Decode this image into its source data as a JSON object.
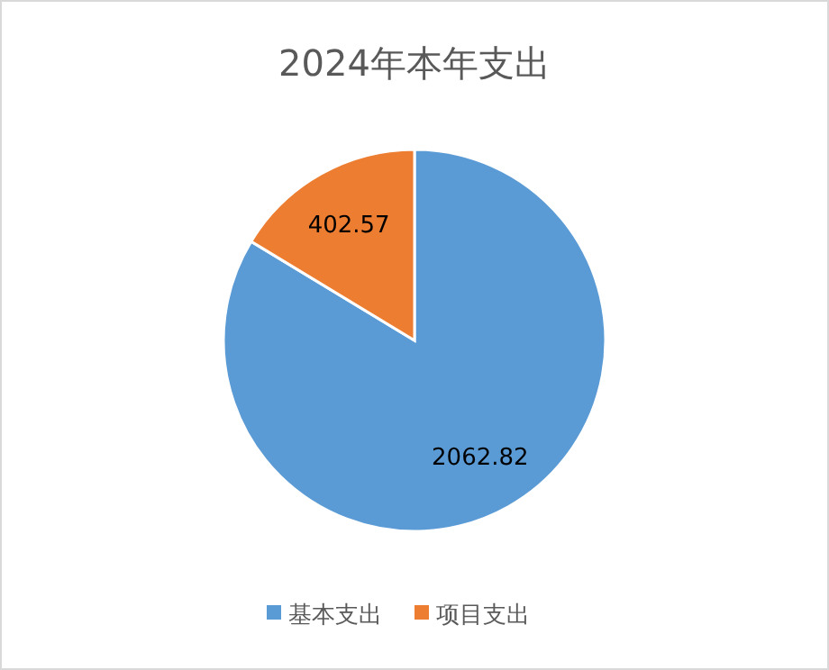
{
  "chart_data": {
    "type": "pie",
    "title": "2024年本年支出",
    "categories": [
      "基本支出",
      "项目支出"
    ],
    "values": [
      2062.82,
      402.57
    ],
    "colors": [
      "#5b9bd5",
      "#ed7d31"
    ],
    "data_labels": true,
    "legend": "bottom"
  }
}
